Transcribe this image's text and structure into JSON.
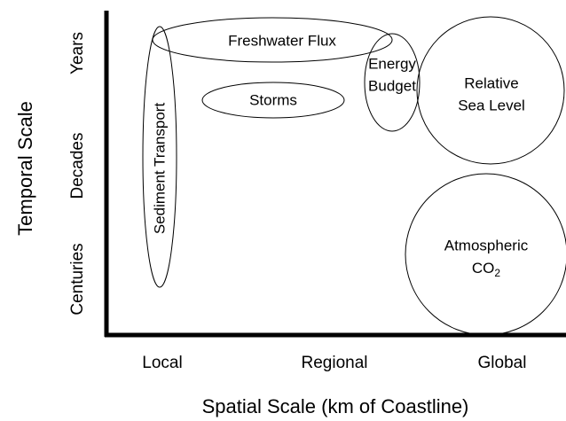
{
  "axes": {
    "y_title": "Temporal Scale",
    "x_title": "Spatial Scale (km of Coastline)",
    "y_labels": [
      "Years",
      "Decades",
      "Centuries"
    ],
    "x_labels": [
      "Local",
      "Regional",
      "Global"
    ]
  },
  "nodes": [
    {
      "lines": [
        "Freshwater Flux"
      ]
    },
    {
      "lines": [
        "Storms"
      ]
    },
    {
      "lines": [
        "Sediment Transport"
      ]
    },
    {
      "lines": [
        "Energy",
        "Budget"
      ]
    },
    {
      "lines": [
        "Relative",
        "Sea Level"
      ]
    },
    {
      "lines": [
        "Atmospheric",
        "CO"
      ],
      "subscript": "2"
    }
  ]
}
